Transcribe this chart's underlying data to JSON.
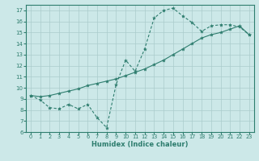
{
  "xlabel": "Humidex (Indice chaleur)",
  "ylabel": "",
  "xlim": [
    -0.5,
    23.5
  ],
  "ylim": [
    6,
    17.5
  ],
  "yticks": [
    6,
    7,
    8,
    9,
    10,
    11,
    12,
    13,
    14,
    15,
    16,
    17
  ],
  "xticks": [
    0,
    1,
    2,
    3,
    4,
    5,
    6,
    7,
    8,
    9,
    10,
    11,
    12,
    13,
    14,
    15,
    16,
    17,
    18,
    19,
    20,
    21,
    22,
    23
  ],
  "line1_x": [
    0,
    1,
    2,
    3,
    4,
    5,
    6,
    7,
    8,
    9,
    10,
    11,
    12,
    13,
    14,
    15,
    16,
    17,
    18,
    19,
    20,
    21,
    22,
    23
  ],
  "line1_y": [
    9.3,
    8.9,
    8.2,
    8.1,
    8.5,
    8.1,
    8.5,
    7.3,
    6.4,
    10.3,
    12.5,
    11.5,
    13.5,
    16.3,
    17.0,
    17.2,
    16.5,
    15.9,
    15.1,
    15.6,
    15.7,
    15.7,
    15.5,
    14.8
  ],
  "line2_x": [
    0,
    1,
    2,
    3,
    4,
    5,
    6,
    7,
    8,
    9,
    10,
    11,
    12,
    13,
    14,
    15,
    16,
    17,
    18,
    19,
    20,
    21,
    22,
    23
  ],
  "line2_y": [
    9.3,
    9.2,
    9.3,
    9.5,
    9.7,
    9.9,
    10.2,
    10.4,
    10.6,
    10.8,
    11.1,
    11.4,
    11.7,
    12.1,
    12.5,
    13.0,
    13.5,
    14.0,
    14.5,
    14.8,
    15.0,
    15.3,
    15.6,
    14.8
  ],
  "line_color": "#2e7d6e",
  "bg_color": "#cce8e8",
  "grid_color": "#aacccc"
}
